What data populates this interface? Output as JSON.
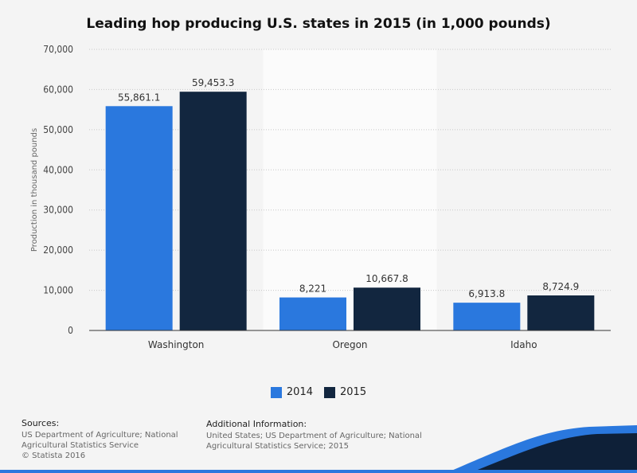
{
  "title": "Leading hop producing U.S. states in 2015 (in 1,000 pounds)",
  "chart_data": {
    "type": "bar",
    "categories": [
      "Washington",
      "Oregon",
      "Idaho"
    ],
    "series": [
      {
        "name": "2014",
        "color": "#2a78de",
        "values": [
          55861.1,
          8221,
          6913.8
        ],
        "labels": [
          "55,861.1",
          "8,221",
          "6,913.8"
        ]
      },
      {
        "name": "2015",
        "color": "#12263f",
        "values": [
          59453.3,
          10667.8,
          8724.9
        ],
        "labels": [
          "59,453.3",
          "10,667.8",
          "8,724.9"
        ]
      }
    ],
    "ylabel": "Production in thousand pounds",
    "ylim": [
      0,
      70000
    ],
    "yticks": [
      0,
      10000,
      20000,
      30000,
      40000,
      50000,
      60000,
      70000
    ],
    "ytick_labels": [
      "0",
      "10,000",
      "20,000",
      "30,000",
      "40,000",
      "50,000",
      "60,000",
      "70,000"
    ],
    "grid": true,
    "legend": "bottom-center"
  },
  "footer": {
    "sources_heading": "Sources:",
    "sources_text": "US Department of Agriculture; National Agricultural Statistics Service",
    "copyright": "© Statista 2016",
    "additional_heading": "Additional Information:",
    "additional_text": "United States; US Department of Agriculture; National Agricultural Statistics Service; 2015"
  }
}
